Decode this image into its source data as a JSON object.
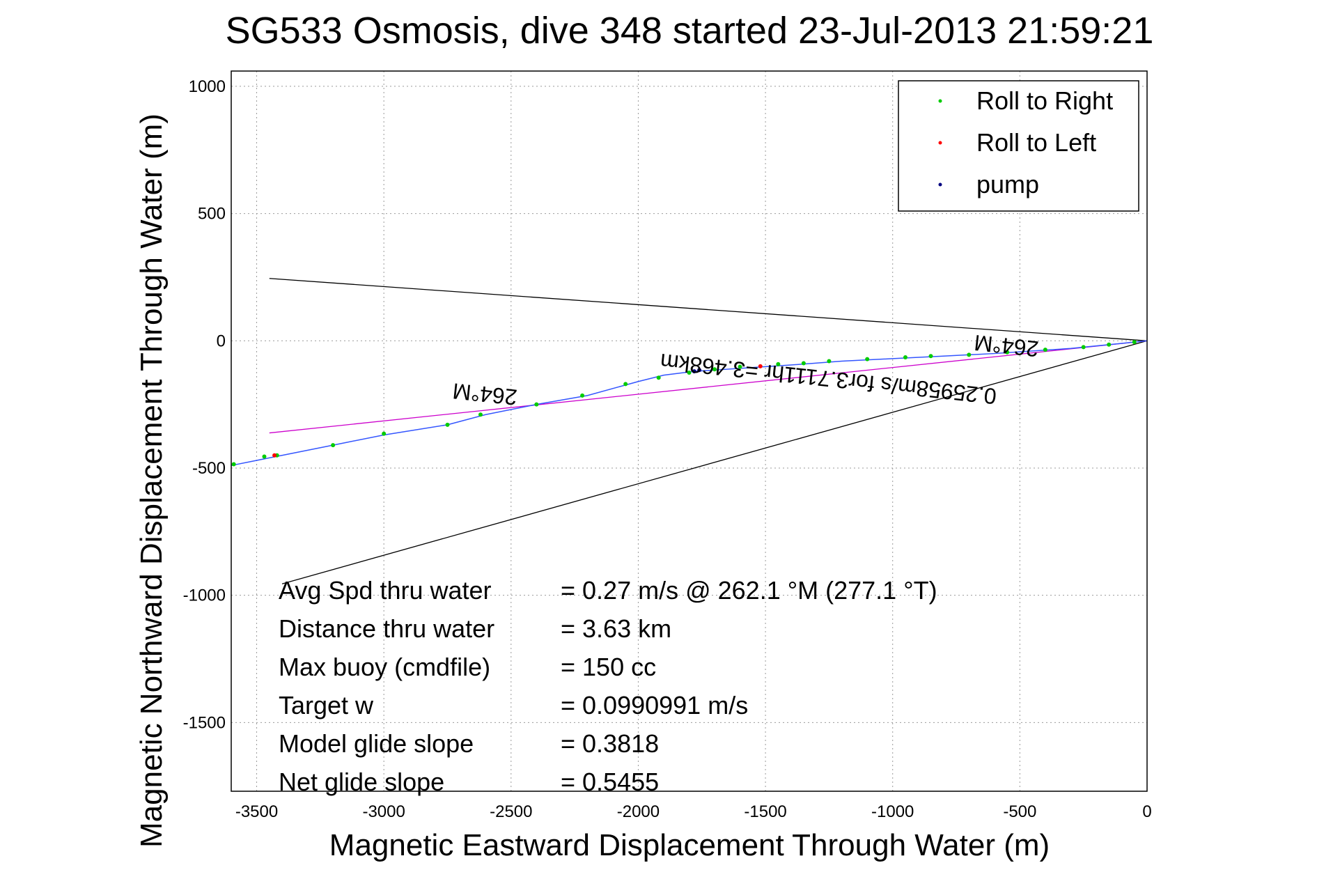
{
  "chart_data": {
    "type": "line",
    "title": "SG533 Osmosis, dive 348 started 23-Jul-2013 21:59:21",
    "xlabel": "Magnetic Eastward Displacement Through Water (m)",
    "ylabel": "Magnetic Northward Displacement Through Water (m)",
    "xlim": [
      -3600,
      0
    ],
    "ylim": [
      -1770,
      1060
    ],
    "x_ticks": [
      -3500,
      -3000,
      -2500,
      -2000,
      -1500,
      -1000,
      -500,
      0
    ],
    "y_ticks": [
      -1500,
      -1000,
      -500,
      0,
      500,
      1000
    ],
    "x_tick_labels": [
      "-3500",
      "-3000",
      "-2500",
      "-2000",
      "-1500",
      "-1000",
      "-500",
      "0"
    ],
    "y_tick_labels": [
      "-1500",
      "-1000",
      "-500",
      "0",
      "500",
      "1000"
    ],
    "grid": true,
    "legend_position": "top-right",
    "legend": [
      {
        "label": "Roll to Right",
        "color": "#00cc00"
      },
      {
        "label": "Roll to Left",
        "color": "#ff0000"
      },
      {
        "label": "pump",
        "color": "#000080"
      }
    ],
    "series": [
      {
        "name": "track",
        "color": "#3355ff",
        "x": [
          0,
          -100,
          -200,
          -300,
          -450,
          -600,
          -800,
          -1000,
          -1200,
          -1400,
          -1550,
          -1700,
          -1780,
          -1900,
          -2000,
          -2200,
          -2400,
          -2600,
          -2750,
          -3000,
          -3200,
          -3400,
          -3600
        ],
        "y": [
          0,
          -10,
          -20,
          -30,
          -40,
          -50,
          -60,
          -70,
          -80,
          -95,
          -105,
          -115,
          -120,
          -135,
          -160,
          -215,
          -250,
          -290,
          -330,
          -370,
          -410,
          -450,
          -490
        ]
      },
      {
        "name": "Roll to Right",
        "color": "#00cc00",
        "x": [
          -50,
          -150,
          -250,
          -400,
          -550,
          -700,
          -850,
          -950,
          -1100,
          -1250,
          -1350,
          -1450,
          -1600,
          -1700,
          -1800,
          -1920,
          -2050,
          -2220,
          -2400,
          -2620,
          -2750,
          -3000,
          -3200,
          -3420,
          -3470,
          -3590
        ],
        "y": [
          -5,
          -15,
          -25,
          -35,
          -45,
          -55,
          -60,
          -65,
          -72,
          -80,
          -88,
          -92,
          -102,
          -112,
          -125,
          -145,
          -170,
          -215,
          -250,
          -290,
          -330,
          -365,
          -410,
          -450,
          -455,
          -485
        ]
      },
      {
        "name": "Roll to Left",
        "color": "#ff0000",
        "x": [
          -1520,
          -3430
        ],
        "y": [
          -100,
          -450
        ]
      },
      {
        "name": "pump",
        "color": "#000080",
        "x": [
          -1760,
          -1780
        ],
        "y": [
          -115,
          -120
        ]
      }
    ],
    "reference_lines": [
      {
        "color": "#000000",
        "x": [
          0,
          -3450
        ],
        "y": [
          0,
          245
        ]
      },
      {
        "color": "#000000",
        "x": [
          0,
          -3400
        ],
        "y": [
          0,
          -955
        ]
      },
      {
        "color": "#cc00cc",
        "x": [
          0,
          -3450
        ],
        "y": [
          0,
          -362
        ]
      }
    ],
    "annotations": [
      {
        "text": "264°M",
        "x": -550,
        "y": 10,
        "rotate": 186
      },
      {
        "text": "264°M",
        "x": -2600,
        "y": -180,
        "rotate": 186
      },
      {
        "text": "0.25958m/s for3.7111hr =3.468km",
        "x": -1250,
        "y": -120,
        "rotate": 186
      }
    ],
    "stats": [
      {
        "label": "Avg Spd thru water",
        "value": "=  0.27 m/s @ 262.1 °M (277.1 °T)"
      },
      {
        "label": "Distance thru water",
        "value": "=  3.63 km"
      },
      {
        "label": "Max buoy (cmdfile)",
        "value": "= 150 cc"
      },
      {
        "label": "Target w",
        "value": "= 0.0990991 m/s"
      },
      {
        "label": "Model glide slope",
        "value": "= 0.3818"
      },
      {
        "label": "Net glide slope",
        "value": "= 0.5455"
      }
    ]
  }
}
